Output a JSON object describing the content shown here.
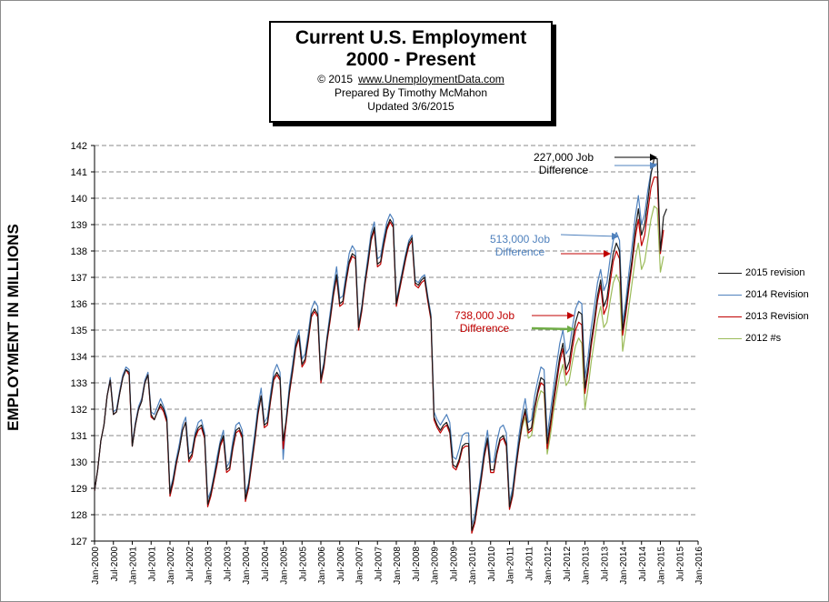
{
  "title": {
    "line1": "Current U.S. Employment",
    "line2": "2000 - Present",
    "copyright": "© 2015",
    "url": "www.UnemploymentData.com",
    "prepared": "Prepared  By Timothy McMahon",
    "updated": "Updated   3/6/2015"
  },
  "annotations": [
    {
      "text": "227,000 Job Difference",
      "color": "#000000"
    },
    {
      "text": "513,000 Job Difference",
      "color": "#4f81bd"
    },
    {
      "text": "738,000 Job Difference",
      "color": "#c00000"
    }
  ],
  "chart_data": {
    "type": "line",
    "ylabel": "EMPLOYMENT IN MILLIONS",
    "xlabel": "",
    "ylim": [
      127,
      142
    ],
    "yticks": [
      127,
      128,
      129,
      130,
      131,
      132,
      133,
      134,
      135,
      136,
      137,
      138,
      139,
      140,
      141,
      142
    ],
    "xlim": [
      2000.0,
      2016.0
    ],
    "xticks": [
      "Jan-2000",
      "Jul-2000",
      "Jan-2001",
      "Jul-2001",
      "Jan-2002",
      "Jul-2002",
      "Jan-2003",
      "Jul-2003",
      "Jan-2004",
      "Jul-2004",
      "Jan-2005",
      "Jul-2005",
      "Jan-2006",
      "Jul-2006",
      "Jan-2007",
      "Jul-2007",
      "Jan-2008",
      "Jul-2008",
      "Jan-2009",
      "Jul-2009",
      "Jan-2010",
      "Jul-2010",
      "Jan-2011",
      "Jul-2011",
      "Jan-2012",
      "Jul-2012",
      "Jan-2013",
      "Jul-2013",
      "Jan-2014",
      "Jul-2014",
      "Jan-2015",
      "Jul-2015",
      "Jan-2016"
    ],
    "grid": "horizontal-dashed",
    "legend_position": "right",
    "series": [
      {
        "name": "2015 revision",
        "color": "#1a1a1a",
        "start": 2000.0,
        "values": [
          128.9,
          129.7,
          130.8,
          131.4,
          132.5,
          133.1,
          131.8,
          131.9,
          132.6,
          133.2,
          133.5,
          133.4,
          130.6,
          131.4,
          132.0,
          132.3,
          133.0,
          133.3,
          131.8,
          131.6,
          131.9,
          132.2,
          132.0,
          131.6,
          128.8,
          129.3,
          130.0,
          130.5,
          131.2,
          131.5,
          130.1,
          130.3,
          131.0,
          131.3,
          131.4,
          131.0,
          128.4,
          128.8,
          129.4,
          130.0,
          130.7,
          131.0,
          129.7,
          129.8,
          130.6,
          131.2,
          131.3,
          131.0,
          128.6,
          129.1,
          130.0,
          130.9,
          131.9,
          132.5,
          131.4,
          131.5,
          132.4,
          133.2,
          133.4,
          133.2,
          130.8,
          131.6,
          132.7,
          133.5,
          134.4,
          134.8,
          133.7,
          133.9,
          134.7,
          135.6,
          135.8,
          135.6,
          133.1,
          133.7,
          134.7,
          135.5,
          136.4,
          137.1,
          136.0,
          136.1,
          136.9,
          137.6,
          137.9,
          137.8,
          135.1,
          135.8,
          136.8,
          137.6,
          138.5,
          138.9,
          137.5,
          137.6,
          138.3,
          138.9,
          139.2,
          139.0,
          136.0,
          136.6,
          137.2,
          137.8,
          138.3,
          138.5,
          136.8,
          136.7,
          136.9,
          137.0,
          136.2,
          135.5,
          131.7,
          131.4,
          131.2,
          131.4,
          131.5,
          131.2,
          129.9,
          129.8,
          130.1,
          130.6,
          130.7,
          130.7,
          127.4,
          127.8,
          128.6,
          129.4,
          130.3,
          130.9,
          129.7,
          129.7,
          130.4,
          130.9,
          131.0,
          130.7,
          128.3,
          128.8,
          129.8,
          130.7,
          131.5,
          132.0,
          131.2,
          131.3,
          132.1,
          132.7,
          133.2,
          133.1,
          130.7,
          131.5,
          132.4,
          133.2,
          134.0,
          134.5,
          133.5,
          133.8,
          134.6,
          135.3,
          135.7,
          135.6,
          132.8,
          133.6,
          134.6,
          135.4,
          136.3,
          136.9,
          135.9,
          136.2,
          137.1,
          137.9,
          138.3,
          138.0,
          135.0,
          135.8,
          136.8,
          137.7,
          138.8,
          139.6,
          138.6,
          139.0,
          139.9,
          140.9,
          141.5,
          141.5,
          138.0,
          139.3,
          139.6
        ]
      },
      {
        "name": "2014 Revision",
        "color": "#4f81bd",
        "start": 2000.0,
        "values": [
          128.9,
          129.7,
          130.8,
          131.4,
          132.5,
          133.2,
          131.9,
          132.0,
          132.7,
          133.3,
          133.6,
          133.5,
          130.7,
          131.5,
          132.1,
          132.4,
          133.1,
          133.4,
          131.9,
          131.8,
          132.1,
          132.4,
          132.1,
          131.7,
          128.9,
          129.4,
          130.1,
          130.7,
          131.4,
          131.7,
          130.3,
          130.4,
          131.1,
          131.5,
          131.6,
          131.1,
          128.6,
          128.9,
          129.5,
          130.2,
          130.8,
          131.2,
          129.8,
          130.0,
          130.8,
          131.4,
          131.5,
          131.2,
          128.8,
          129.2,
          130.2,
          131.1,
          132.1,
          132.8,
          131.5,
          131.7,
          132.6,
          133.4,
          133.7,
          133.4,
          130.1,
          131.7,
          132.9,
          133.7,
          134.6,
          135.0,
          133.9,
          134.1,
          134.9,
          135.8,
          136.1,
          135.9,
          133.2,
          133.8,
          134.8,
          135.7,
          136.6,
          137.4,
          136.2,
          136.3,
          137.1,
          137.9,
          138.2,
          138.0,
          135.2,
          135.9,
          136.9,
          137.8,
          138.7,
          139.1,
          137.7,
          137.8,
          138.5,
          139.1,
          139.4,
          139.2,
          136.1,
          136.7,
          137.3,
          137.9,
          138.4,
          138.6,
          136.9,
          136.8,
          137.0,
          137.1,
          136.3,
          135.6,
          131.9,
          131.6,
          131.4,
          131.6,
          131.8,
          131.5,
          130.2,
          130.1,
          130.5,
          131.0,
          131.1,
          131.1,
          127.6,
          128.0,
          128.8,
          129.6,
          130.5,
          131.2,
          130.0,
          130.0,
          130.8,
          131.3,
          131.4,
          131.1,
          128.5,
          129.0,
          130.0,
          131.0,
          131.8,
          132.4,
          131.5,
          131.6,
          132.5,
          133.1,
          133.6,
          133.5,
          131.0,
          131.9,
          132.8,
          133.7,
          134.5,
          135.0,
          134.1,
          134.3,
          135.1,
          135.8,
          136.1,
          136.0,
          133.2,
          134.0,
          135.1,
          135.9,
          136.8,
          137.3,
          136.5,
          136.8,
          137.7,
          138.4,
          138.7,
          138.4,
          135.3,
          136.1,
          137.2,
          138.2,
          139.3,
          140.1,
          139.0,
          139.4,
          140.3,
          141.0,
          141.3,
          141.3
        ]
      },
      {
        "name": "2013 Revision",
        "color": "#c00000",
        "start": 2000.0,
        "values": [
          128.9,
          129.7,
          130.8,
          131.4,
          132.5,
          133.1,
          131.8,
          131.9,
          132.6,
          133.2,
          133.5,
          133.3,
          130.6,
          131.4,
          132.0,
          132.3,
          133.0,
          133.3,
          131.7,
          131.6,
          131.9,
          132.1,
          131.9,
          131.5,
          128.7,
          129.2,
          129.9,
          130.5,
          131.2,
          131.5,
          130.0,
          130.2,
          130.9,
          131.2,
          131.3,
          130.9,
          128.3,
          128.7,
          129.3,
          129.9,
          130.6,
          130.9,
          129.6,
          129.7,
          130.5,
          131.1,
          131.2,
          130.9,
          128.5,
          129.0,
          129.9,
          130.8,
          131.8,
          132.5,
          131.3,
          131.4,
          132.3,
          133.1,
          133.3,
          133.1,
          130.5,
          131.5,
          132.6,
          133.4,
          134.3,
          134.7,
          133.6,
          133.8,
          134.6,
          135.5,
          135.7,
          135.5,
          133.0,
          133.6,
          134.6,
          135.4,
          136.3,
          137.0,
          135.9,
          136.0,
          136.8,
          137.5,
          137.8,
          137.7,
          135.0,
          135.7,
          136.7,
          137.5,
          138.4,
          138.8,
          137.4,
          137.5,
          138.2,
          138.8,
          139.1,
          138.9,
          135.9,
          136.5,
          137.1,
          137.7,
          138.2,
          138.4,
          136.7,
          136.6,
          136.8,
          136.9,
          136.1,
          135.4,
          131.6,
          131.3,
          131.1,
          131.3,
          131.4,
          131.1,
          129.8,
          129.7,
          130.0,
          130.5,
          130.6,
          130.6,
          127.3,
          127.7,
          128.5,
          129.3,
          130.2,
          130.8,
          129.6,
          129.6,
          130.3,
          130.8,
          130.9,
          130.6,
          128.2,
          128.7,
          129.7,
          130.6,
          131.4,
          131.9,
          131.1,
          131.2,
          132.0,
          132.6,
          133.0,
          132.9,
          130.5,
          131.3,
          132.2,
          133.0,
          133.8,
          134.3,
          133.3,
          133.5,
          134.3,
          135.0,
          135.3,
          135.2,
          132.6,
          133.4,
          134.4,
          135.2,
          136.1,
          136.7,
          135.6,
          135.9,
          136.8,
          137.6,
          138.0,
          137.7,
          134.8,
          135.6,
          136.6,
          137.5,
          138.5,
          139.2,
          138.2,
          138.6,
          139.5,
          140.4,
          140.8,
          140.8,
          137.9,
          138.8
        ]
      },
      {
        "name": "2012 #s",
        "color": "#9bbb59",
        "start": 2011.0,
        "values": [
          128.4,
          128.9,
          129.8,
          130.6,
          131.3,
          131.7,
          130.9,
          131.0,
          131.7,
          132.3,
          132.7,
          132.6,
          130.3,
          131.0,
          131.9,
          132.6,
          133.3,
          133.7,
          132.9,
          133.1,
          133.8,
          134.4,
          134.7,
          134.5,
          132.0,
          132.8,
          133.8,
          134.6,
          135.4,
          135.9,
          135.1,
          135.3,
          136.1,
          136.8,
          137.1,
          136.8,
          134.2,
          135.0,
          135.9,
          136.8,
          137.7,
          138.3,
          137.3,
          137.6,
          138.4,
          139.2,
          139.7,
          139.6,
          137.2,
          137.8
        ]
      }
    ]
  },
  "legend": {
    "items": [
      {
        "label": "2015 revision",
        "color": "#1a1a1a"
      },
      {
        "label": "2014 Revision",
        "color": "#4f81bd"
      },
      {
        "label": "2013 Revision",
        "color": "#c00000"
      },
      {
        "label": "2012 #s",
        "color": "#9bbb59"
      }
    ]
  }
}
